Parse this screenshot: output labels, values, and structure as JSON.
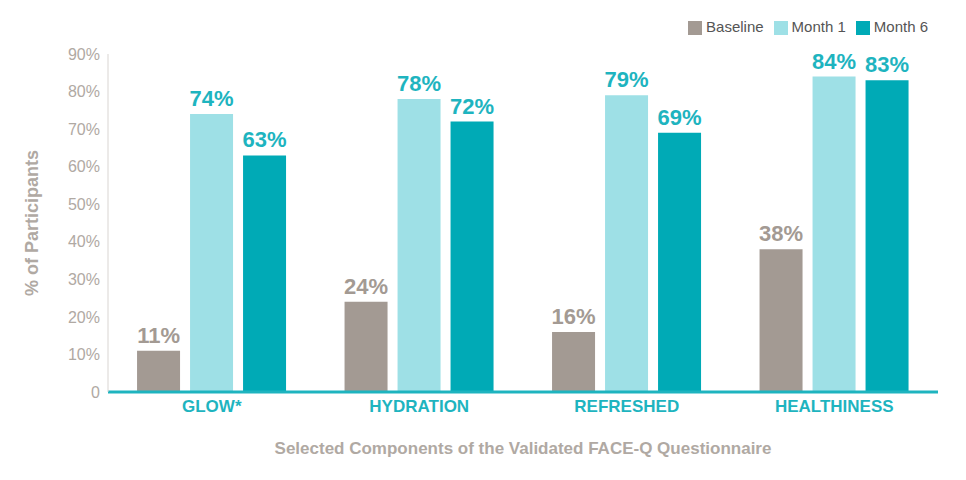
{
  "chart_data": {
    "type": "bar",
    "x_label": "Selected Components of the Validated FACE-Q Questionnaire",
    "y_label": "% of Participants",
    "categories": [
      "GLOW*",
      "HYDRATION",
      "REFRESHED",
      "HEALTHINESS"
    ],
    "series": [
      {
        "name": "Baseline",
        "color": "#a39a93",
        "values": [
          11,
          24,
          16,
          38
        ],
        "value_labels": [
          "11%",
          "24%",
          "16%",
          "38%"
        ]
      },
      {
        "name": "Month 1",
        "color": "#9ee0e6",
        "values": [
          74,
          78,
          79,
          84
        ],
        "value_labels": [
          "74%",
          "78%",
          "79%",
          "84%"
        ]
      },
      {
        "name": "Month 6",
        "color": "#00aab6",
        "values": [
          63,
          72,
          69,
          83
        ],
        "value_labels": [
          "63%",
          "72%",
          "69%",
          "83%"
        ]
      }
    ],
    "ylim": [
      0,
      90
    ],
    "yticks": [
      0,
      {
        "value": 10,
        "label": "10%"
      },
      {
        "value": 20,
        "label": "20%"
      },
      {
        "value": 30,
        "label": "30%"
      },
      {
        "value": 40,
        "label": "40%"
      },
      {
        "value": 50,
        "label": "50%"
      },
      {
        "value": 60,
        "label": "60%"
      },
      {
        "value": 70,
        "label": "70%"
      },
      {
        "value": 80,
        "label": "80%"
      },
      {
        "value": 90,
        "label": "90%"
      }
    ],
    "grid": false,
    "legend": "top-right",
    "data_labels": true
  }
}
